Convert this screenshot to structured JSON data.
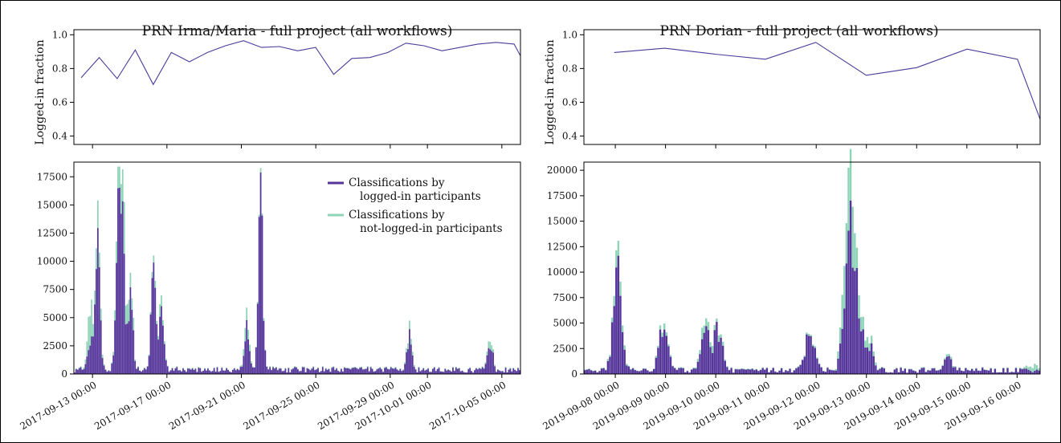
{
  "colors": {
    "logged": "#55359a",
    "notlogged": "#8fd3b8",
    "frac_line": "#4b3a9a",
    "frame": "#000000"
  },
  "legend": {
    "logged_line1": "Classifications by",
    "logged_line2": "logged-in participants",
    "notlogged_line1": "Classifications by",
    "notlogged_line2": "not-logged-in participants"
  },
  "chart_data": [
    {
      "id": "irma_fraction",
      "type": "line",
      "title": "PRN Irma/Maria - full project (all workflows)",
      "ylabel": "Logged-in fraction",
      "xlim": [
        -0.4,
        24.35
      ],
      "ylim": [
        0.35,
        1.03
      ],
      "yticks": [
        0.4,
        0.6,
        0.8,
        1.0
      ],
      "ytick_labels": [
        "0.4",
        "0.6",
        "0.8",
        "1.0"
      ],
      "x": [
        0,
        1,
        2,
        3,
        4,
        5,
        6,
        7,
        8,
        9,
        10,
        11,
        12,
        13,
        14,
        15,
        16,
        17,
        18,
        19,
        20,
        21,
        22,
        23,
        24,
        24.35
      ],
      "y": [
        0.745,
        0.865,
        0.74,
        0.91,
        0.705,
        0.895,
        0.84,
        0.895,
        0.935,
        0.965,
        0.925,
        0.93,
        0.905,
        0.925,
        0.765,
        0.86,
        0.865,
        0.895,
        0.95,
        0.935,
        0.905,
        0.925,
        0.945,
        0.955,
        0.945,
        0.875
      ]
    },
    {
      "id": "irma_counts",
      "type": "bar",
      "ylim": [
        0,
        18800
      ],
      "yticks": [
        0,
        2500,
        5000,
        7500,
        10000,
        12500,
        15000,
        17500
      ],
      "ytick_labels": [
        "0",
        "2500",
        "5000",
        "7500",
        "10000",
        "12500",
        "15000",
        "17500"
      ],
      "xlim": [
        "2017-09-12 00:00",
        "2017-10-06 00:00"
      ],
      "xticks": [
        "2017-09-13 00:00",
        "2017-09-17 00:00",
        "2017-09-21 00:00",
        "2017-09-25 00:00",
        "2017-09-29 00:00",
        "2017-10-01 00:00",
        "2017-10-05 00:00"
      ],
      "bin_hours": 2,
      "series": [
        {
          "name": "Classifications by logged-in participants"
        },
        {
          "name": "Classifications by not-logged-in participants"
        }
      ],
      "peaks": [
        {
          "time": "2017-09-12 21:00",
          "logged": 4000,
          "notlogged": 2700
        },
        {
          "time": "2017-09-13 07:00",
          "logged": 12000,
          "notlogged": 1900
        },
        {
          "time": "2017-09-14 09:00",
          "logged": 13500,
          "notlogged": 1500
        },
        {
          "time": "2017-09-14 15:00",
          "logged": 12500,
          "notlogged": 4500
        },
        {
          "time": "2017-09-15 01:00",
          "logged": 8300,
          "notlogged": 1700
        },
        {
          "time": "2017-09-16 07:00",
          "logged": 11800,
          "notlogged": 600
        },
        {
          "time": "2017-09-16 17:00",
          "logged": 7800,
          "notlogged": 900
        },
        {
          "time": "2017-09-21 07:00",
          "logged": 4000,
          "notlogged": 1000
        },
        {
          "time": "2017-09-22 01:00",
          "logged": 17700,
          "notlogged": 300
        },
        {
          "time": "2017-09-30 01:00",
          "logged": 3500,
          "notlogged": 900
        },
        {
          "time": "2017-10-04 09:00",
          "logged": 3000,
          "notlogged": 500
        }
      ]
    },
    {
      "id": "dorian_fraction",
      "type": "line",
      "title": "PRN Dorian - full project (all workflows)",
      "ylabel": "Logged-in fraction",
      "xlim": [
        -0.6,
        8.45
      ],
      "ylim": [
        0.35,
        1.03
      ],
      "yticks": [
        0.4,
        0.6,
        0.8,
        1.0
      ],
      "ytick_labels": [
        "0.4",
        "0.6",
        "0.8",
        "1.0"
      ],
      "x": [
        0,
        1,
        2,
        3,
        4,
        5,
        6,
        7,
        8,
        8.45
      ],
      "y": [
        0.895,
        0.92,
        0.885,
        0.855,
        0.955,
        0.76,
        0.805,
        0.915,
        0.855,
        0.5
      ]
    },
    {
      "id": "dorian_counts",
      "type": "bar",
      "ylim": [
        0,
        20800
      ],
      "yticks": [
        0,
        2500,
        5000,
        7500,
        10000,
        12500,
        15000,
        17500,
        20000
      ],
      "ytick_labels": [
        "0",
        "2500",
        "5000",
        "7500",
        "10000",
        "12500",
        "15000",
        "17500",
        "20000"
      ],
      "xlim": [
        "2019-09-07 09:00",
        "2019-09-16 11:00"
      ],
      "xticks": [
        "2019-09-08 00:00",
        "2019-09-09 00:00",
        "2019-09-10 00:00",
        "2019-09-11 00:00",
        "2019-09-12 00:00",
        "2019-09-13 00:00",
        "2019-09-14 00:00",
        "2019-09-15 00:00",
        "2019-09-16 00:00"
      ],
      "bin_hours": 1,
      "series": [
        {
          "name": "Classifications by logged-in participants"
        },
        {
          "name": "Classifications by not-logged-in participants"
        }
      ],
      "peaks": [
        {
          "time": "2019-09-08 01:00",
          "logged": 11000,
          "notlogged": 1300
        },
        {
          "time": "2019-09-08 23:00",
          "logged": 5600,
          "notlogged": 400
        },
        {
          "time": "2019-09-09 19:00",
          "logged": 4700,
          "notlogged": 1000
        },
        {
          "time": "2019-09-10 01:00",
          "logged": 4700,
          "notlogged": 500
        },
        {
          "time": "2019-09-11 21:00",
          "logged": 4800,
          "notlogged": 200
        },
        {
          "time": "2019-09-12 15:00",
          "logged": 13700,
          "notlogged": 5800
        },
        {
          "time": "2019-09-12 19:00",
          "logged": 11000,
          "notlogged": 2000
        },
        {
          "time": "2019-09-13 01:00",
          "logged": 3200,
          "notlogged": 900
        },
        {
          "time": "2019-09-14 15:00",
          "logged": 1400,
          "notlogged": 200
        },
        {
          "time": "2019-09-16 07:00",
          "logged": 0,
          "notlogged": 600
        }
      ]
    }
  ]
}
